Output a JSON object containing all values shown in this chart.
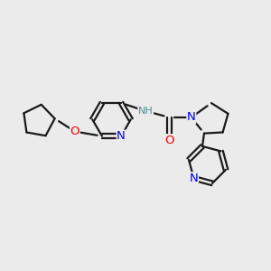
{
  "background_color": "#ebebeb",
  "bond_color": "#1a1a1a",
  "N_color": "#0000ee",
  "O_color": "#ee0000",
  "NH_color": "#4a9090",
  "figsize": [
    3.0,
    3.0
  ],
  "dpi": 100,
  "xlim": [
    0,
    10
  ],
  "ylim": [
    0,
    10
  ],
  "lw": 1.6,
  "fs": 8.5
}
